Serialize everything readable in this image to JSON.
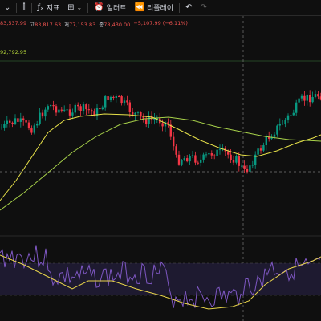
{
  "toolbar": {
    "indicators_label": "지표",
    "alerts_label": "얼러트",
    "replay_label": "리플레이"
  },
  "ohlc": {
    "open": "83,537.99",
    "high_key": "고",
    "high": "83,817.63",
    "low_key": "저",
    "low": "77,153.83",
    "close_key": "종",
    "close": "78,430.00",
    "change": "−5,107.99 (−6.11%)"
  },
  "ma_value": "92,792.95",
  "colors": {
    "up": "#089981",
    "down": "#f23645",
    "ma_fast": "#e8e24a",
    "ma_slow": "#a8d24a",
    "rsi_line": "#7e57c2",
    "rsi_ma": "#e8d44a",
    "rsi_band": "#1f1a33"
  }
}
